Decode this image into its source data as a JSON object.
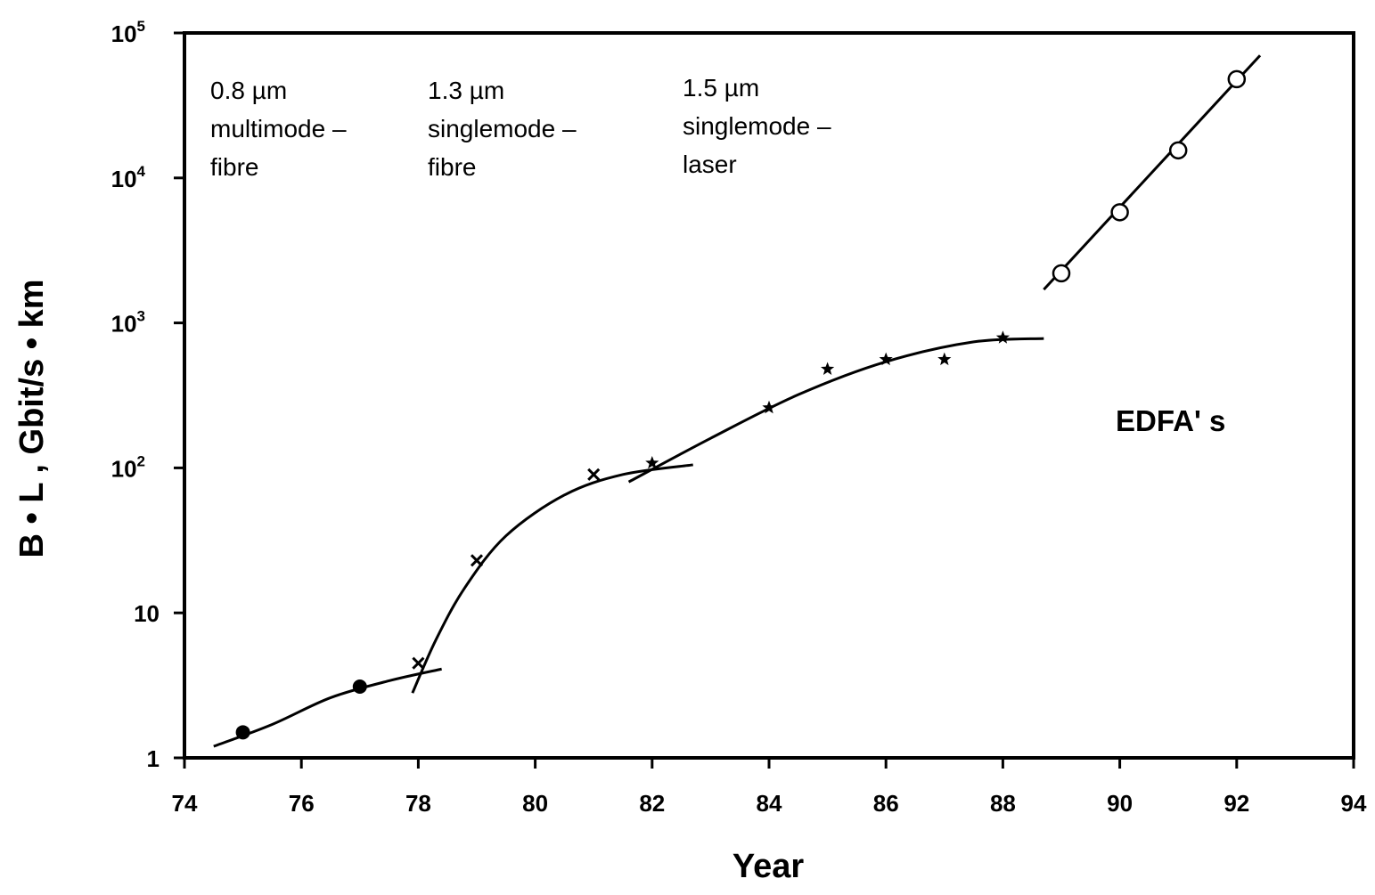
{
  "chart_data": {
    "type": "scatter",
    "title": "",
    "xlabel": "Year",
    "ylabel": "B • L , Gbit/s • km",
    "xlim": [
      74,
      94
    ],
    "ylim": [
      1,
      100000
    ],
    "yscale": "log",
    "grid": false,
    "x_ticks": [
      "74",
      "76",
      "78",
      "80",
      "82",
      "84",
      "86",
      "88",
      "90",
      "92",
      "94"
    ],
    "y_ticks": [
      {
        "value": 1,
        "base": "1",
        "exp": ""
      },
      {
        "value": 10,
        "base": "10",
        "exp": ""
      },
      {
        "value": 100,
        "base": "10",
        "exp": "2"
      },
      {
        "value": 1000,
        "base": "10",
        "exp": "3"
      },
      {
        "value": 10000,
        "base": "10",
        "exp": "4"
      },
      {
        "value": 100000,
        "base": "10",
        "exp": "5"
      }
    ],
    "annotations": [
      {
        "lines": [
          "0.8 µm",
          "multimode –",
          "fibre"
        ]
      },
      {
        "lines": [
          "1.3 µm",
          "singlemode –",
          "fibre"
        ]
      },
      {
        "lines": [
          "1.5 µm",
          "singlemode –",
          "laser"
        ]
      },
      {
        "lines": [
          "EDFA' s"
        ]
      }
    ],
    "series": [
      {
        "marker": "filled-circle",
        "points": [
          [
            75,
            1.5
          ],
          [
            77,
            3.1
          ]
        ],
        "trend": [
          [
            74.5,
            1.2
          ],
          [
            75.5,
            1.7
          ],
          [
            76.5,
            2.6
          ],
          [
            77.5,
            3.4
          ],
          [
            78.4,
            4.1
          ]
        ]
      },
      {
        "marker": "x",
        "points": [
          [
            78,
            4.5
          ],
          [
            79,
            23
          ],
          [
            81,
            90
          ]
        ],
        "trend": [
          [
            77.9,
            2.8
          ],
          [
            78.3,
            6.5
          ],
          [
            78.8,
            15
          ],
          [
            79.5,
            34
          ],
          [
            80.5,
            65
          ],
          [
            81.5,
            90
          ],
          [
            82.7,
            105
          ]
        ]
      },
      {
        "marker": "star",
        "points": [
          [
            82,
            108
          ],
          [
            84,
            260
          ],
          [
            85,
            480
          ],
          [
            86,
            560
          ],
          [
            87,
            560
          ],
          [
            88,
            790
          ]
        ],
        "trend": [
          [
            81.6,
            80
          ],
          [
            83,
            160
          ],
          [
            84.5,
            320
          ],
          [
            86,
            540
          ],
          [
            87.5,
            740
          ],
          [
            88.7,
            780
          ]
        ]
      },
      {
        "marker": "open-circle",
        "points": [
          [
            89,
            2200
          ],
          [
            90,
            5800
          ],
          [
            91,
            15500
          ],
          [
            92,
            48000
          ]
        ],
        "trend": [
          [
            88.7,
            1700
          ],
          [
            92.4,
            70000
          ]
        ]
      }
    ]
  }
}
